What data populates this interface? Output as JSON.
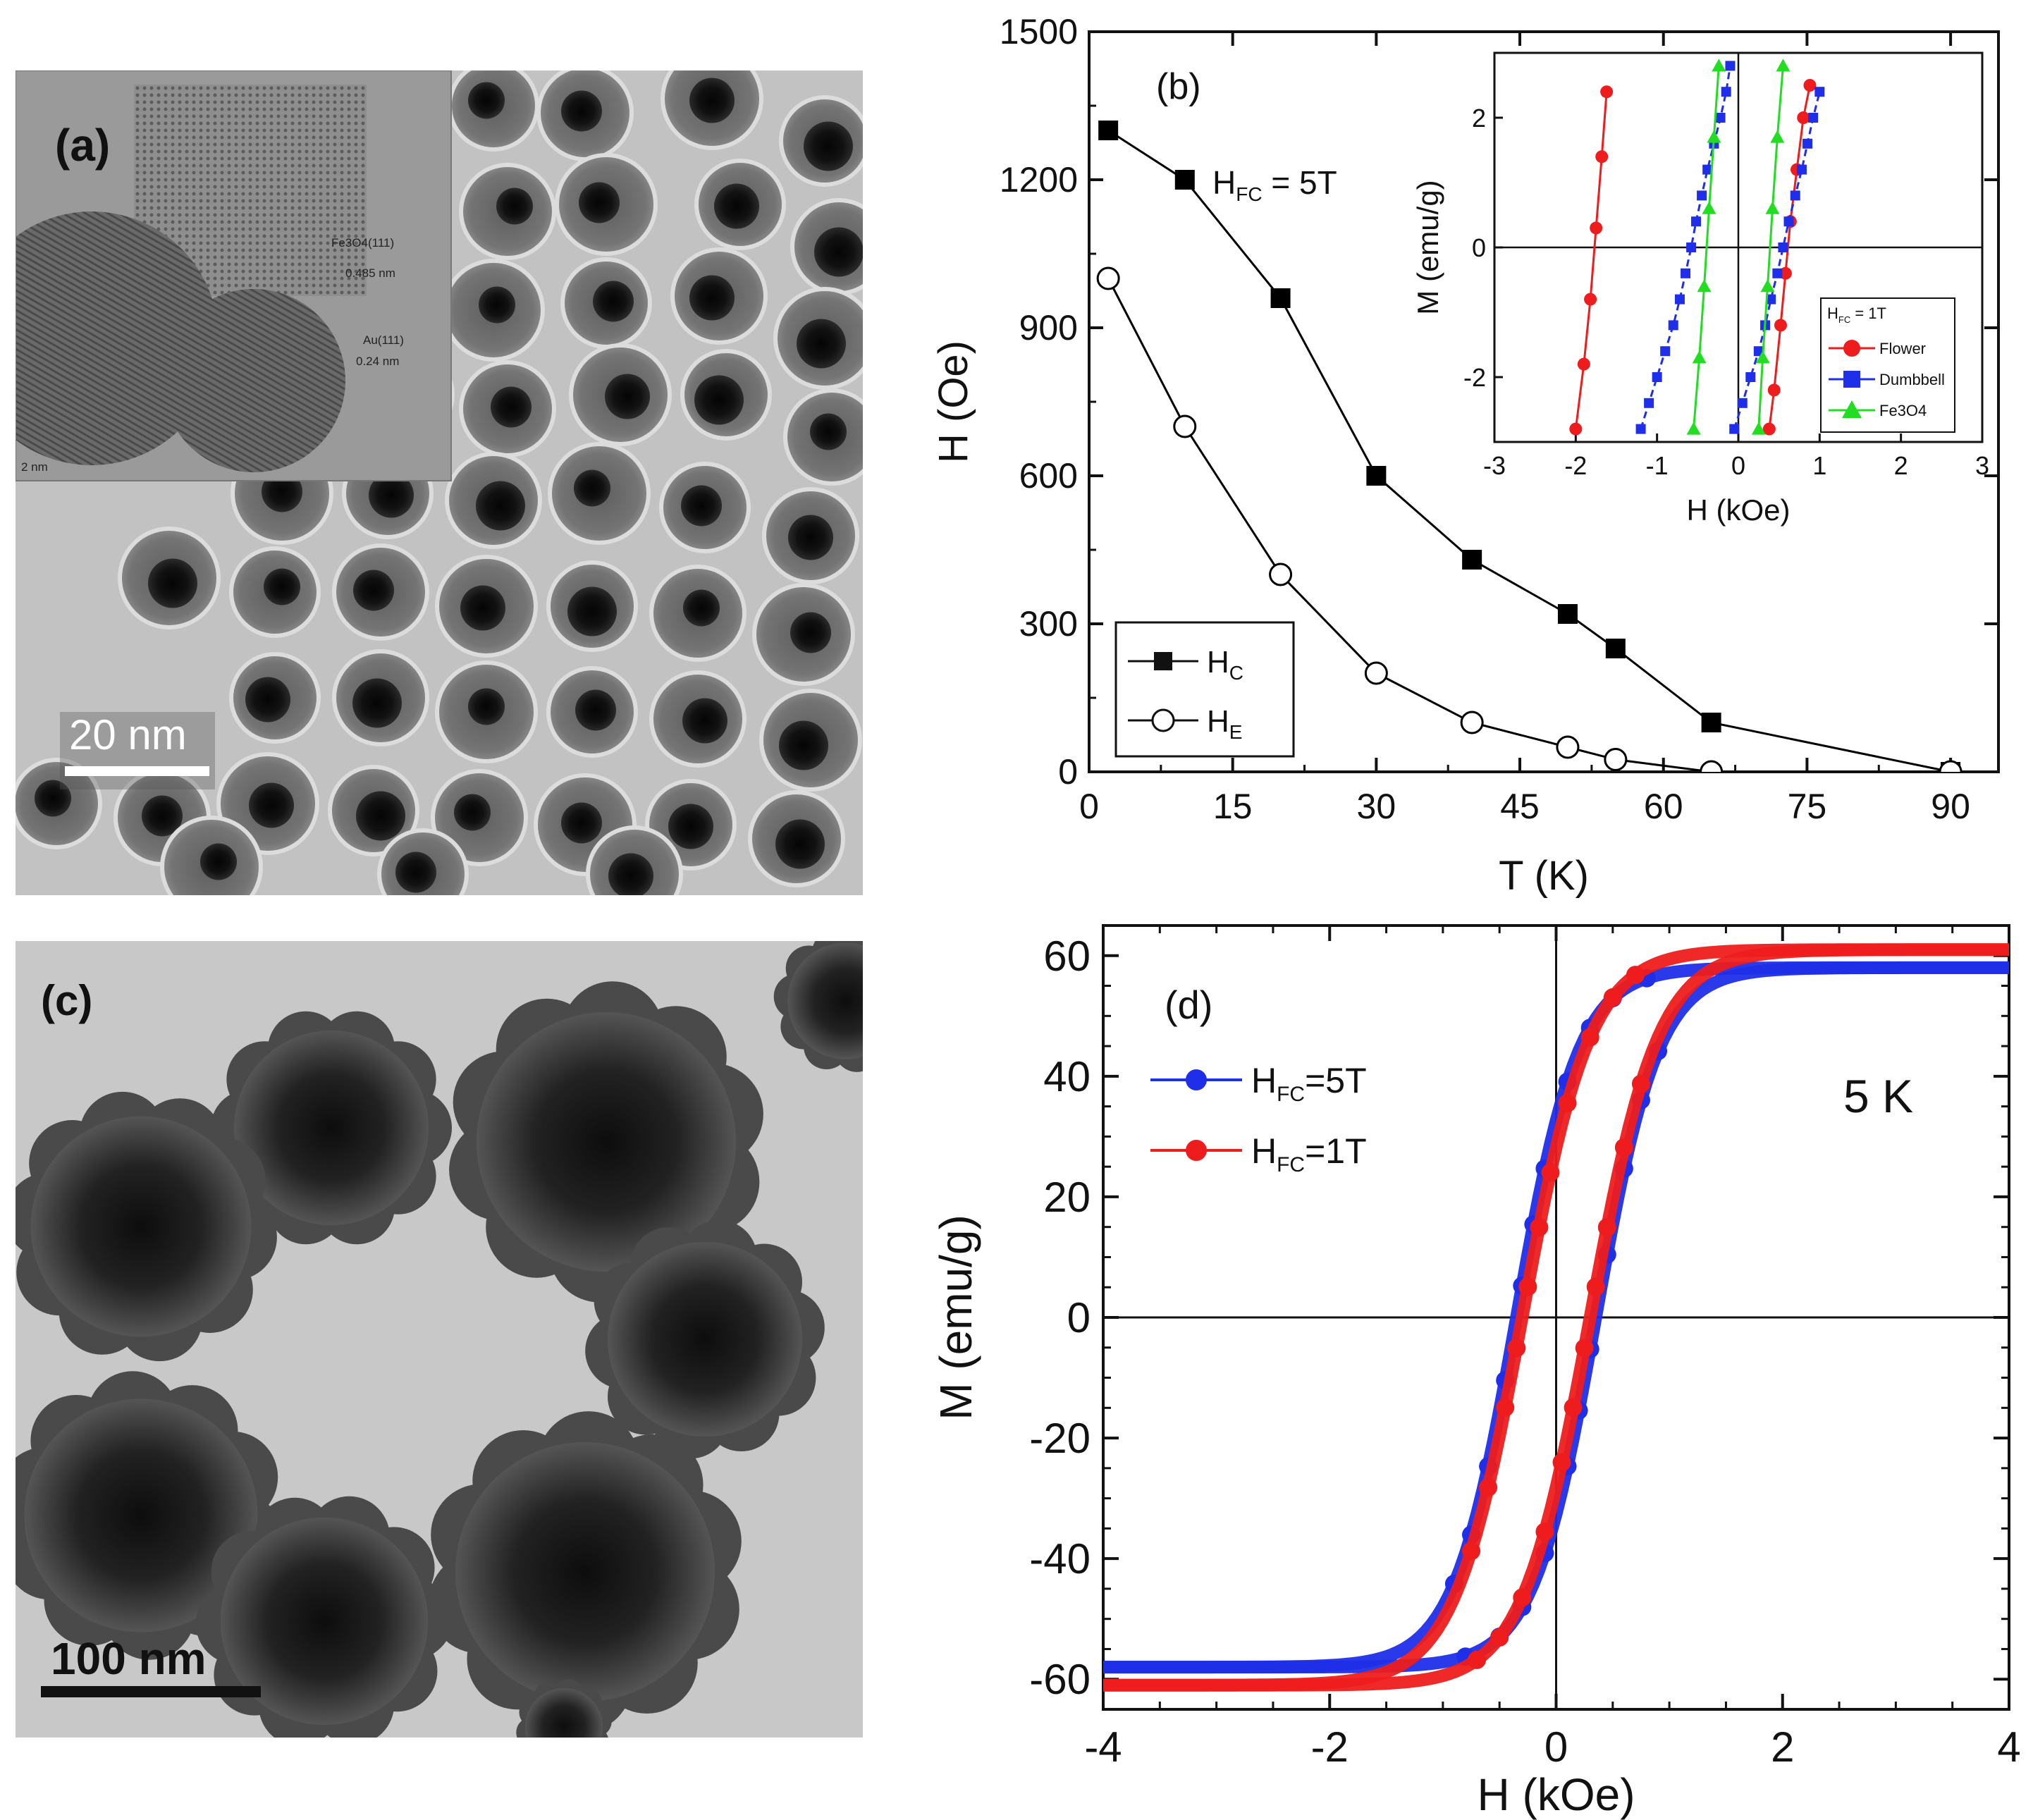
{
  "panels": {
    "a": {
      "label": "(a)",
      "scale_bar": "20 nm",
      "inset_annotations": [
        "Fe3O4(111)",
        "0.485 nm",
        "Au(111)",
        "0.24 nm",
        "2 nm"
      ]
    },
    "c": {
      "label": "(c)",
      "scale_bar": "100 nm"
    }
  },
  "chart_data": [
    {
      "id": "b",
      "type": "line",
      "panel_label": "(b)",
      "annotation": "H",
      "annotation_sub": "FC",
      "annotation_tail": " = 5T",
      "xlabel": "T (K)",
      "ylabel": "H (Oe)",
      "xlim": [
        0,
        95
      ],
      "ylim": [
        0,
        1500
      ],
      "xticks": [
        0,
        15,
        30,
        45,
        60,
        75,
        90
      ],
      "yticks": [
        0,
        300,
        600,
        900,
        1200,
        1500
      ],
      "legend_position": "bottom-left",
      "series": [
        {
          "name": "H",
          "sub": "C",
          "marker": "filled-square",
          "color": "#000000",
          "x": [
            2,
            10,
            20,
            30,
            40,
            50,
            55,
            65,
            90
          ],
          "y": [
            1300,
            1200,
            960,
            600,
            430,
            320,
            250,
            100,
            0
          ]
        },
        {
          "name": "H",
          "sub": "E",
          "marker": "open-circle",
          "color": "#000000",
          "x": [
            2,
            10,
            20,
            30,
            40,
            50,
            55,
            65,
            90
          ],
          "y": [
            1000,
            700,
            400,
            200,
            100,
            50,
            25,
            0,
            0
          ]
        }
      ]
    },
    {
      "id": "b-inset",
      "type": "line",
      "xlabel": "H (kOe)",
      "ylabel": "M (emu/g)",
      "xlim": [
        -3,
        3
      ],
      "ylim": [
        -3,
        3
      ],
      "xticks": [
        -3,
        -2,
        -1,
        0,
        1,
        2,
        3
      ],
      "yticks": [
        -2,
        0,
        2
      ],
      "legend_title": "H",
      "legend_title_sub": "FC",
      "legend_title_tail": " = 1T",
      "legend_position": "bottom-right",
      "series": [
        {
          "name": "Flower",
          "color": "#ee1c1c",
          "marker": "circle",
          "dashed": false,
          "branches": [
            {
              "x": [
                -2.0,
                -1.9,
                -1.82,
                -1.75,
                -1.68,
                -1.62
              ],
              "y": [
                -2.8,
                -1.8,
                -0.8,
                0.3,
                1.4,
                2.4
              ]
            },
            {
              "x": [
                0.38,
                0.44,
                0.52,
                0.58,
                0.64,
                0.72,
                0.8,
                0.88
              ],
              "y": [
                -2.8,
                -2.2,
                -1.2,
                -0.4,
                0.4,
                1.2,
                2.0,
                2.5
              ]
            }
          ]
        },
        {
          "name": "Dumbbell",
          "color": "#1f2ee8",
          "marker": "square",
          "dashed": true,
          "branches": [
            {
              "x": [
                -1.2,
                -1.1,
                -1.0,
                -0.9,
                -0.8,
                -0.72,
                -0.65,
                -0.58,
                -0.52,
                -0.45,
                -0.38,
                -0.3,
                -0.22,
                -0.15,
                -0.1
              ],
              "y": [
                -2.8,
                -2.4,
                -2.0,
                -1.6,
                -1.2,
                -0.8,
                -0.4,
                0.0,
                0.4,
                0.8,
                1.2,
                1.6,
                2.0,
                2.4,
                2.8
              ]
            },
            {
              "x": [
                -0.05,
                0.05,
                0.15,
                0.25,
                0.33,
                0.4,
                0.48,
                0.55,
                0.62,
                0.7,
                0.78,
                0.85,
                0.92,
                1.0
              ],
              "y": [
                -2.8,
                -2.4,
                -2.0,
                -1.6,
                -1.2,
                -0.8,
                -0.4,
                0.0,
                0.4,
                0.8,
                1.2,
                1.6,
                2.0,
                2.4
              ]
            }
          ]
        },
        {
          "name": "Fe3O4",
          "color": "#22dd22",
          "marker": "triangle",
          "dashed": false,
          "branches": [
            {
              "x": [
                -0.55,
                -0.48,
                -0.42,
                -0.36,
                -0.3,
                -0.24
              ],
              "y": [
                -2.8,
                -1.7,
                -0.6,
                0.6,
                1.7,
                2.8
              ]
            },
            {
              "x": [
                0.25,
                0.3,
                0.36,
                0.42,
                0.48,
                0.55
              ],
              "y": [
                -2.8,
                -1.7,
                -0.6,
                0.6,
                1.7,
                2.8
              ]
            }
          ]
        }
      ]
    },
    {
      "id": "d",
      "type": "scatter",
      "panel_label": "(d)",
      "annotation": "5 K",
      "xlabel": "H (kOe)",
      "ylabel": "M (emu/g)",
      "xlim": [
        -4,
        4
      ],
      "ylim": [
        -65,
        65
      ],
      "xticks": [
        -4,
        -2,
        0,
        2,
        4
      ],
      "yticks": [
        -60,
        -40,
        -20,
        0,
        20,
        40,
        60
      ],
      "legend_position": "top-left",
      "series": [
        {
          "name": "H",
          "sub": "FC",
          "tail": "=5T",
          "color": "#1f2ee8",
          "Ms": 58,
          "Hc": 0.35,
          "w": 0.55,
          "markers_desc": [
            0.8,
            0.5,
            0.3,
            0.1,
            -0.1,
            -0.2,
            -0.3,
            -0.45,
            -0.6,
            -0.75,
            -0.9
          ],
          "markers_asc": [
            -0.8,
            -0.5,
            -0.3,
            -0.1,
            0.1,
            0.2,
            0.3,
            0.45,
            0.6,
            0.75,
            0.9
          ]
        },
        {
          "name": "H",
          "sub": "FC",
          "tail": "=1T",
          "color": "#ee1c1c",
          "Ms": 61,
          "Hc": 0.3,
          "w": 0.6,
          "markers_desc": [
            0.7,
            0.5,
            0.3,
            0.1,
            -0.05,
            -0.15,
            -0.25,
            -0.35,
            -0.45,
            -0.6,
            -0.75
          ],
          "markers_asc": [
            -0.7,
            -0.5,
            -0.3,
            -0.1,
            0.05,
            0.15,
            0.25,
            0.35,
            0.45,
            0.6,
            0.75
          ]
        }
      ]
    }
  ]
}
